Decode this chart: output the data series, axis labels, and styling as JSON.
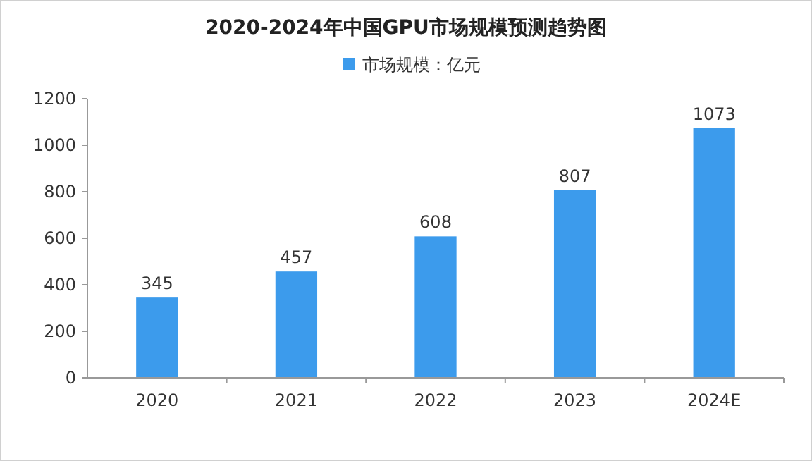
{
  "chart_data": {
    "type": "bar",
    "title": "2020-2024年中国GPU市场规模预测趋势图",
    "categories": [
      "2020",
      "2021",
      "2022",
      "2023",
      "2024E"
    ],
    "series": [
      {
        "name": "市场规模：亿元",
        "color": "#3c9bec",
        "values": [
          345,
          457,
          608,
          807,
          1073
        ]
      }
    ],
    "ylim": [
      0,
      1200
    ],
    "yticks": [
      0,
      200,
      400,
      600,
      800,
      1000,
      1200
    ],
    "data_labels": true,
    "legend": "top",
    "grid": false
  }
}
